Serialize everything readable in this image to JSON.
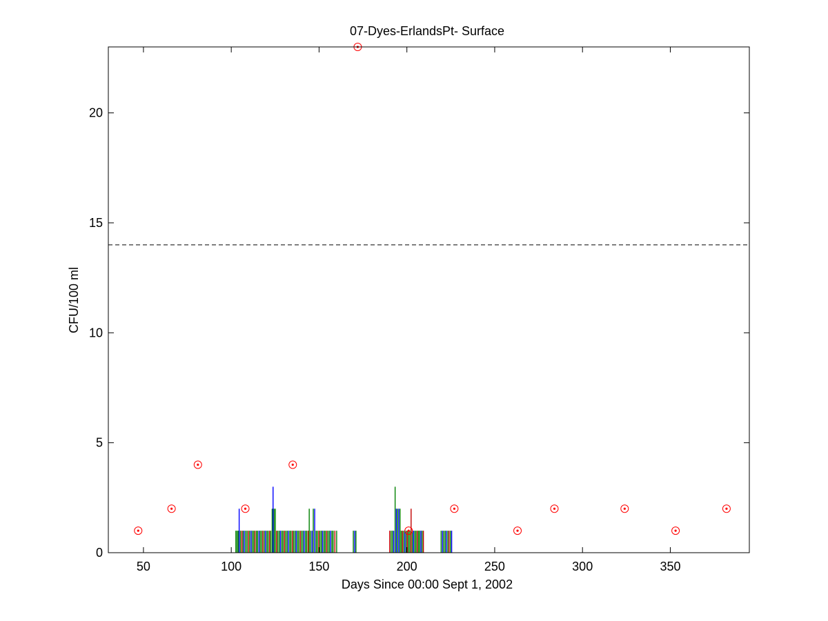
{
  "chart_data": {
    "type": "scatter",
    "title": "07-Dyes-ErlandsPt- Surface",
    "xlabel": "Days Since 00:00 Sept 1, 2002",
    "ylabel": "CFU/100 ml",
    "xlim": [
      30,
      395
    ],
    "ylim": [
      0,
      23
    ],
    "xticks": [
      50,
      100,
      150,
      200,
      250,
      300,
      350
    ],
    "yticks": [
      0,
      5,
      10,
      15,
      20
    ],
    "grid": false,
    "legend": "none",
    "threshold_line": {
      "y": 14,
      "style": "dashed",
      "color": "#000000"
    },
    "samples": {
      "marker": "circle-dot",
      "color": "#ff0000",
      "x": [
        47,
        66,
        81,
        108,
        135,
        172,
        201,
        227,
        263,
        284,
        324,
        353,
        382
      ],
      "y": [
        1,
        2,
        4,
        2,
        4,
        23,
        1,
        2,
        1,
        2,
        2,
        1,
        2
      ]
    },
    "bars": {
      "colors": {
        "g": "#008000",
        "b": "#0000ff",
        "r": "#c00000"
      },
      "items": [
        {
          "x": 102.6,
          "h": 1,
          "c": "g"
        },
        {
          "x": 103.3,
          "h": 1,
          "c": "g"
        },
        {
          "x": 104.0,
          "h": 1,
          "c": "g"
        },
        {
          "x": 104.5,
          "h": 2,
          "c": "b"
        },
        {
          "x": 105.2,
          "h": 1,
          "c": "g"
        },
        {
          "x": 106.0,
          "h": 1,
          "c": "r"
        },
        {
          "x": 106.7,
          "h": 1,
          "c": "g"
        },
        {
          "x": 107.4,
          "h": 1,
          "c": "b"
        },
        {
          "x": 108.2,
          "h": 1,
          "c": "g"
        },
        {
          "x": 109.0,
          "h": 1,
          "c": "g"
        },
        {
          "x": 109.8,
          "h": 1,
          "c": "r"
        },
        {
          "x": 110.5,
          "h": 1,
          "c": "g"
        },
        {
          "x": 111.3,
          "h": 1,
          "c": "b"
        },
        {
          "x": 112.0,
          "h": 1,
          "c": "g"
        },
        {
          "x": 112.8,
          "h": 1,
          "c": "g"
        },
        {
          "x": 113.5,
          "h": 1,
          "c": "r"
        },
        {
          "x": 114.3,
          "h": 1,
          "c": "g"
        },
        {
          "x": 115.0,
          "h": 1,
          "c": "g"
        },
        {
          "x": 115.8,
          "h": 1,
          "c": "b"
        },
        {
          "x": 116.5,
          "h": 1,
          "c": "g"
        },
        {
          "x": 117.3,
          "h": 1,
          "c": "g"
        },
        {
          "x": 118.0,
          "h": 1,
          "c": "r"
        },
        {
          "x": 118.8,
          "h": 1,
          "c": "g"
        },
        {
          "x": 119.5,
          "h": 1,
          "c": "b"
        },
        {
          "x": 120.3,
          "h": 1,
          "c": "g"
        },
        {
          "x": 121.0,
          "h": 1,
          "c": "g"
        },
        {
          "x": 121.8,
          "h": 1,
          "c": "r"
        },
        {
          "x": 122.5,
          "h": 1,
          "c": "g"
        },
        {
          "x": 123.3,
          "h": 2,
          "c": "g"
        },
        {
          "x": 123.8,
          "h": 3,
          "c": "b"
        },
        {
          "x": 124.4,
          "h": 2,
          "c": "g"
        },
        {
          "x": 125.1,
          "h": 2,
          "c": "g"
        },
        {
          "x": 125.8,
          "h": 1,
          "c": "r"
        },
        {
          "x": 126.5,
          "h": 1,
          "c": "g"
        },
        {
          "x": 127.3,
          "h": 1,
          "c": "g"
        },
        {
          "x": 128.0,
          "h": 1,
          "c": "b"
        },
        {
          "x": 128.8,
          "h": 1,
          "c": "g"
        },
        {
          "x": 129.5,
          "h": 1,
          "c": "g"
        },
        {
          "x": 130.3,
          "h": 1,
          "c": "r"
        },
        {
          "x": 131.0,
          "h": 1,
          "c": "g"
        },
        {
          "x": 131.8,
          "h": 1,
          "c": "g"
        },
        {
          "x": 132.5,
          "h": 1,
          "c": "b"
        },
        {
          "x": 133.3,
          "h": 1,
          "c": "g"
        },
        {
          "x": 134.0,
          "h": 1,
          "c": "g"
        },
        {
          "x": 134.8,
          "h": 1,
          "c": "r"
        },
        {
          "x": 135.5,
          "h": 1,
          "c": "g"
        },
        {
          "x": 136.3,
          "h": 1,
          "c": "g"
        },
        {
          "x": 137.0,
          "h": 1,
          "c": "b"
        },
        {
          "x": 137.8,
          "h": 1,
          "c": "g"
        },
        {
          "x": 138.5,
          "h": 1,
          "c": "g"
        },
        {
          "x": 139.3,
          "h": 1,
          "c": "r"
        },
        {
          "x": 140.0,
          "h": 1,
          "c": "g"
        },
        {
          "x": 140.8,
          "h": 1,
          "c": "g"
        },
        {
          "x": 141.5,
          "h": 1,
          "c": "b"
        },
        {
          "x": 142.3,
          "h": 1,
          "c": "g"
        },
        {
          "x": 143.0,
          "h": 1,
          "c": "g"
        },
        {
          "x": 143.8,
          "h": 1,
          "c": "r"
        },
        {
          "x": 144.4,
          "h": 2,
          "c": "g"
        },
        {
          "x": 145.2,
          "h": 1,
          "c": "g"
        },
        {
          "x": 146.0,
          "h": 1,
          "c": "b"
        },
        {
          "x": 146.7,
          "h": 2,
          "c": "g"
        },
        {
          "x": 147.5,
          "h": 2,
          "c": "b"
        },
        {
          "x": 148.3,
          "h": 1,
          "c": "g"
        },
        {
          "x": 149.0,
          "h": 1,
          "c": "g"
        },
        {
          "x": 149.8,
          "h": 1,
          "c": "r"
        },
        {
          "x": 150.5,
          "h": 1,
          "c": "g"
        },
        {
          "x": 151.3,
          "h": 1,
          "c": "g"
        },
        {
          "x": 152.0,
          "h": 1,
          "c": "b"
        },
        {
          "x": 152.8,
          "h": 1,
          "c": "g"
        },
        {
          "x": 153.5,
          "h": 1,
          "c": "g"
        },
        {
          "x": 154.3,
          "h": 1,
          "c": "r"
        },
        {
          "x": 155.0,
          "h": 1,
          "c": "g"
        },
        {
          "x": 155.8,
          "h": 1,
          "c": "g"
        },
        {
          "x": 156.5,
          "h": 1,
          "c": "b"
        },
        {
          "x": 157.3,
          "h": 1,
          "c": "g"
        },
        {
          "x": 158.0,
          "h": 1,
          "c": "g"
        },
        {
          "x": 159.0,
          "h": 1,
          "c": "r"
        },
        {
          "x": 160.0,
          "h": 1,
          "c": "g"
        },
        {
          "x": 169.5,
          "h": 1,
          "c": "g"
        },
        {
          "x": 170.3,
          "h": 1,
          "c": "b"
        },
        {
          "x": 171.0,
          "h": 1,
          "c": "g"
        },
        {
          "x": 190.2,
          "h": 1,
          "c": "r"
        },
        {
          "x": 191.0,
          "h": 1,
          "c": "g"
        },
        {
          "x": 191.8,
          "h": 1,
          "c": "g"
        },
        {
          "x": 192.5,
          "h": 1,
          "c": "b"
        },
        {
          "x": 193.3,
          "h": 3,
          "c": "g"
        },
        {
          "x": 194.0,
          "h": 2,
          "c": "b"
        },
        {
          "x": 194.7,
          "h": 2,
          "c": "g"
        },
        {
          "x": 195.4,
          "h": 2,
          "c": "b"
        },
        {
          "x": 196.1,
          "h": 2,
          "c": "g"
        },
        {
          "x": 196.8,
          "h": 1,
          "c": "g"
        },
        {
          "x": 197.5,
          "h": 1,
          "c": "r"
        },
        {
          "x": 198.2,
          "h": 1,
          "c": "g"
        },
        {
          "x": 198.9,
          "h": 1,
          "c": "b"
        },
        {
          "x": 199.6,
          "h": 1,
          "c": "g"
        },
        {
          "x": 200.3,
          "h": 1,
          "c": "r"
        },
        {
          "x": 201.0,
          "h": 1,
          "c": "g"
        },
        {
          "x": 201.7,
          "h": 1,
          "c": "g"
        },
        {
          "x": 202.4,
          "h": 2,
          "c": "r"
        },
        {
          "x": 203.1,
          "h": 1,
          "c": "g"
        },
        {
          "x": 203.8,
          "h": 1,
          "c": "b"
        },
        {
          "x": 204.5,
          "h": 1,
          "c": "g"
        },
        {
          "x": 205.2,
          "h": 1,
          "c": "g"
        },
        {
          "x": 205.9,
          "h": 1,
          "c": "r"
        },
        {
          "x": 206.6,
          "h": 1,
          "c": "g"
        },
        {
          "x": 207.3,
          "h": 1,
          "c": "g"
        },
        {
          "x": 208.0,
          "h": 1,
          "c": "b"
        },
        {
          "x": 208.7,
          "h": 1,
          "c": "g"
        },
        {
          "x": 209.4,
          "h": 1,
          "c": "r"
        },
        {
          "x": 219.5,
          "h": 1,
          "c": "g"
        },
        {
          "x": 220.3,
          "h": 1,
          "c": "b"
        },
        {
          "x": 221.0,
          "h": 1,
          "c": "g"
        },
        {
          "x": 221.8,
          "h": 1,
          "c": "g"
        },
        {
          "x": 222.5,
          "h": 1,
          "c": "b"
        },
        {
          "x": 223.3,
          "h": 1,
          "c": "g"
        },
        {
          "x": 224.0,
          "h": 1,
          "c": "r"
        },
        {
          "x": 224.8,
          "h": 1,
          "c": "g"
        },
        {
          "x": 225.5,
          "h": 1,
          "c": "b"
        }
      ]
    }
  }
}
